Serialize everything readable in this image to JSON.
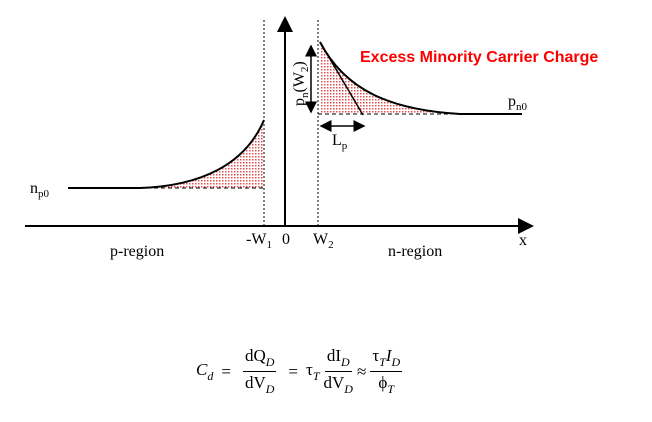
{
  "title": "Excess Minority Carrier Charge",
  "colors": {
    "title": "#ff0000",
    "fill": "#e05050",
    "line": "#000000"
  },
  "labels": {
    "np0": {
      "main": "n",
      "sub": "p0"
    },
    "pn0": {
      "main": "p",
      "sub": "n0"
    },
    "pnW2": {
      "main": "p",
      "sub": "n",
      "arg": "(W",
      "argsub": "2",
      "close": ")"
    },
    "Lp": {
      "main": "L",
      "sub": "p"
    },
    "negW1": {
      "main": "-W",
      "sub": "1"
    },
    "zero": "0",
    "W2": {
      "main": "W",
      "sub": "2"
    },
    "x": "x",
    "p_region": "p-region",
    "n_region": "n-region"
  },
  "formula": {
    "lhs": "C",
    "lhs_sub": "d",
    "eq1": "=",
    "f1_num": "dQ",
    "f1_num_sub": "D",
    "f1_den": "dV",
    "f1_den_sub": "D",
    "eq2": "=",
    "tau": "τ",
    "tau_sub": "T",
    "f2_num": "dI",
    "f2_num_sub": "D",
    "f2_den": "dV",
    "f2_den_sub": "D",
    "approx": "≈",
    "f3_num_tau": "τ",
    "f3_num_tau_sub": "T",
    "f3_num_I": "I",
    "f3_num_I_sub": "D",
    "f3_den": "ϕ",
    "f3_den_sub": "T"
  }
}
